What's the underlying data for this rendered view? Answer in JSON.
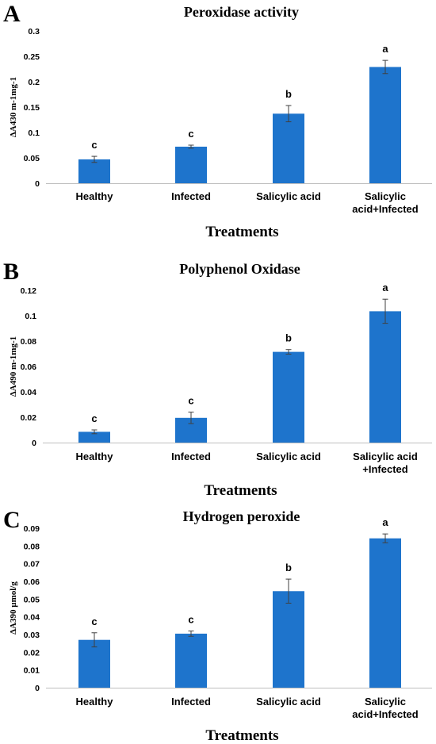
{
  "chart_data": [
    {
      "panel": "A",
      "type": "bar",
      "title": "Peroxidase activity",
      "xlabel": "Treatments",
      "ylabel": "ΔA430 m-1mg-1",
      "categories": [
        [
          "Healthy"
        ],
        [
          "Infected"
        ],
        [
          "Salicylic acid"
        ],
        [
          "Salicylic",
          "acid+Infected"
        ]
      ],
      "values": [
        0.047,
        0.072,
        0.137,
        0.229
      ],
      "errors": [
        0.006,
        0.003,
        0.016,
        0.013
      ],
      "significance": [
        "c",
        "c",
        "b",
        "a"
      ],
      "ylim": [
        0,
        0.3
      ],
      "yticks": [
        "0",
        "0.05",
        "0.1",
        "0.15",
        "0.2",
        "0.25",
        "0.3"
      ],
      "color": "#1E74CC",
      "grid": false
    },
    {
      "panel": "B",
      "type": "bar",
      "title": "Polyphenol Oxidase",
      "xlabel": "Treatments",
      "ylabel": "ΔA490 m-1mg-1",
      "categories": [
        [
          "Healthy"
        ],
        [
          "Infected"
        ],
        [
          "Salicylic acid"
        ],
        [
          "Salicylic acid",
          "+Infected"
        ]
      ],
      "values": [
        0.0085,
        0.0195,
        0.0715,
        0.1035
      ],
      "errors": [
        0.0015,
        0.0045,
        0.0018,
        0.0095
      ],
      "significance": [
        "c",
        "c",
        "b",
        "a"
      ],
      "ylim": [
        0,
        0.12
      ],
      "yticks": [
        "0",
        "0.02",
        "0.04",
        "0.06",
        "0.08",
        "0.1",
        "0.12"
      ],
      "color": "#1E74CC",
      "grid": false
    },
    {
      "panel": "C",
      "type": "bar",
      "title": "Hydrogen peroxide",
      "xlabel": "Treatments",
      "ylabel": "ΔA390 µmol/g",
      "categories": [
        [
          "Healthy"
        ],
        [
          "Infected"
        ],
        [
          "Salicylic acid"
        ],
        [
          "Salicylic",
          "acid+Infected"
        ]
      ],
      "values": [
        0.027,
        0.0305,
        0.0545,
        0.0843
      ],
      "errors": [
        0.004,
        0.0015,
        0.0068,
        0.0025
      ],
      "significance": [
        "c",
        "c",
        "b",
        "a"
      ],
      "ylim": [
        0,
        0.09
      ],
      "yticks": [
        "0",
        "0.01",
        "0.02",
        "0.03",
        "0.04",
        "0.05",
        "0.06",
        "0.07",
        "0.08",
        "0.09"
      ],
      "color": "#1E74CC",
      "grid": false
    }
  ]
}
